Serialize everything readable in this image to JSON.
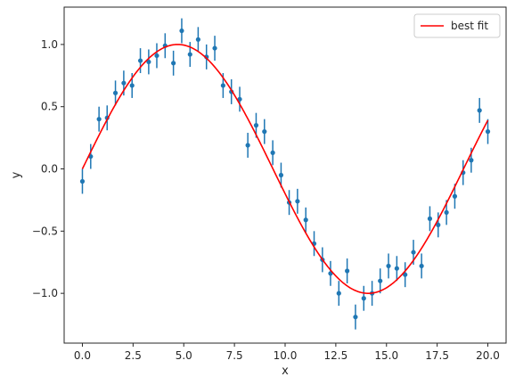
{
  "chart_data": {
    "type": "scatter",
    "title": "",
    "xlabel": "x",
    "ylabel": "y",
    "xlim": [
      -0.9,
      20.9
    ],
    "ylim": [
      -1.4,
      1.3
    ],
    "xticks": [
      0.0,
      2.5,
      5.0,
      7.5,
      10.0,
      12.5,
      15.0,
      17.5,
      20.0
    ],
    "xtick_labels": [
      "0.0",
      "2.5",
      "5.0",
      "7.5",
      "10.0",
      "12.5",
      "15.0",
      "17.5",
      "20.0"
    ],
    "yticks": [
      -1.0,
      -0.5,
      0.0,
      0.5,
      1.0
    ],
    "ytick_labels": [
      "−1.0",
      "−0.5",
      "0.0",
      "0.5",
      "1.0"
    ],
    "grid": false,
    "legend": {
      "position": "top-right",
      "entries": [
        "best fit"
      ]
    },
    "data_series": {
      "color": "#1f77b4",
      "x": [
        0.0,
        0.41,
        0.82,
        1.22,
        1.63,
        2.04,
        2.45,
        2.86,
        3.27,
        3.67,
        4.08,
        4.49,
        4.9,
        5.31,
        5.71,
        6.12,
        6.53,
        6.94,
        7.35,
        7.76,
        8.16,
        8.57,
        8.98,
        9.39,
        9.8,
        10.2,
        10.61,
        11.02,
        11.43,
        11.84,
        12.24,
        12.65,
        13.06,
        13.47,
        13.88,
        14.29,
        14.69,
        15.1,
        15.51,
        15.92,
        16.33,
        16.73,
        17.14,
        17.55,
        17.96,
        18.37,
        18.78,
        19.18,
        19.59,
        20.0
      ],
      "y": [
        -0.1,
        0.1,
        0.4,
        0.41,
        0.61,
        0.69,
        0.67,
        0.87,
        0.86,
        0.91,
        0.99,
        0.85,
        1.11,
        0.92,
        1.04,
        0.9,
        0.97,
        0.67,
        0.62,
        0.56,
        0.19,
        0.35,
        0.3,
        0.13,
        -0.05,
        -0.27,
        -0.26,
        -0.41,
        -0.6,
        -0.73,
        -0.84,
        -1.0,
        -0.82,
        -1.19,
        -1.04,
        -1.0,
        -0.9,
        -0.78,
        -0.8,
        -0.85,
        -0.67,
        -0.78,
        -0.4,
        -0.45,
        -0.35,
        -0.22,
        -0.03,
        0.07,
        0.47,
        0.3
      ],
      "yerr": 0.1
    },
    "fit_series": {
      "name": "best fit",
      "color": "#ff0000",
      "amplitude": 1.0,
      "period": 18.8,
      "x_range": [
        0.0,
        20.0
      ]
    }
  }
}
